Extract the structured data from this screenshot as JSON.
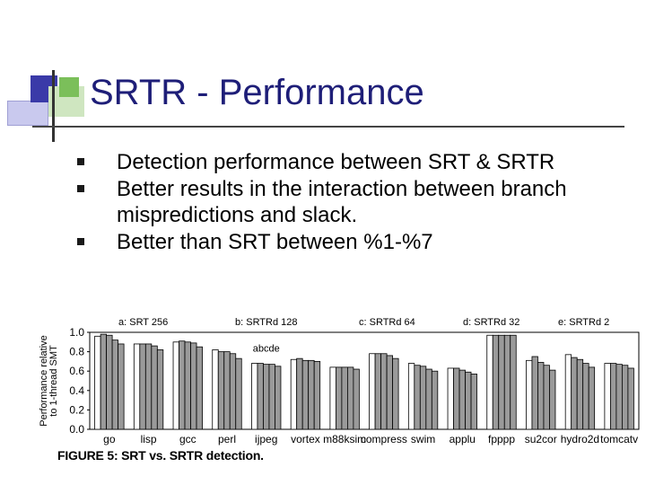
{
  "slide": {
    "title": "SRTR - Performance",
    "bullets": [
      "Detection performance between SRT & SRTR",
      "Better results in the interaction between branch mispredictions and slack.",
      "Better than SRT between %1-%7"
    ]
  },
  "figure": {
    "caption": "FIGURE 5: SRT vs. SRTR detection.",
    "chart_data": {
      "type": "bar",
      "ylabel": "Performance relative to 1-thread SMT",
      "ylim": [
        0.0,
        1.0
      ],
      "yticks": [
        "1.0",
        "0.8",
        "0.6",
        "0.4",
        "0.2",
        "0.0"
      ],
      "inline_label": "abcde",
      "categories": [
        "go",
        "lisp",
        "gcc",
        "perl",
        "ijpeg",
        "vortex",
        "m88ksim",
        "compress",
        "swim",
        "applu",
        "fpppp",
        "su2cor",
        "hydro2d",
        "tomcatv"
      ],
      "series": [
        {
          "name": "a: SRT 256",
          "values": [
            0.96,
            0.88,
            0.9,
            0.82,
            0.68,
            0.72,
            0.64,
            0.78,
            0.68,
            0.63,
            0.97,
            0.71,
            0.77,
            0.68
          ]
        },
        {
          "name": "b: SRTRd 128",
          "values": [
            0.98,
            0.88,
            0.91,
            0.8,
            0.68,
            0.73,
            0.64,
            0.78,
            0.66,
            0.63,
            0.97,
            0.75,
            0.74,
            0.68
          ]
        },
        {
          "name": "c: SRTRd 64",
          "values": [
            0.97,
            0.88,
            0.9,
            0.8,
            0.67,
            0.71,
            0.64,
            0.78,
            0.65,
            0.61,
            0.97,
            0.69,
            0.72,
            0.67
          ]
        },
        {
          "name": "d: SRTRd 32",
          "values": [
            0.92,
            0.86,
            0.89,
            0.78,
            0.67,
            0.71,
            0.64,
            0.76,
            0.62,
            0.59,
            0.97,
            0.66,
            0.68,
            0.66
          ]
        },
        {
          "name": "e: SRTRd 2",
          "values": [
            0.88,
            0.82,
            0.85,
            0.73,
            0.65,
            0.7,
            0.62,
            0.73,
            0.6,
            0.57,
            0.97,
            0.61,
            0.64,
            0.63
          ]
        }
      ],
      "colors": [
        "#ffffff",
        "#9a9a9a",
        "#9a9a9a",
        "#9a9a9a",
        "#9a9a9a"
      ]
    }
  }
}
